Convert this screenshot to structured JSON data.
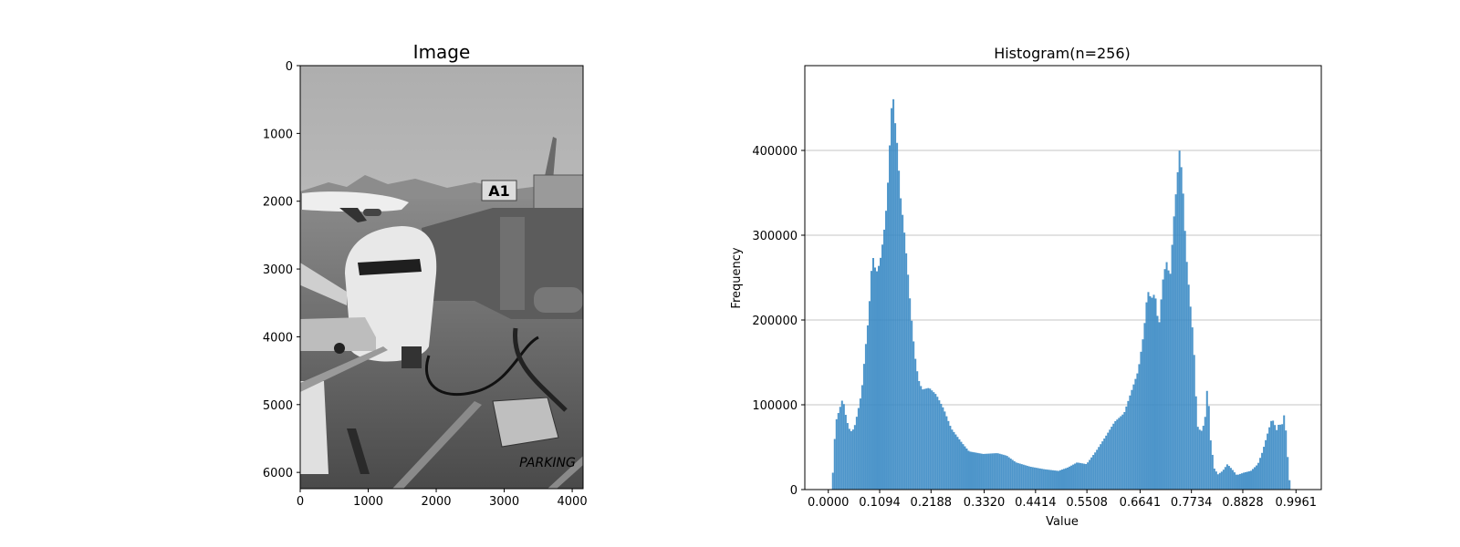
{
  "chart_data": [
    {
      "type": "image",
      "title": "Image",
      "description_colors": {
        "sky": "#b8b8b8",
        "tarmac": "#5a5a5a"
      },
      "xticks": [
        "0",
        "1000",
        "2000",
        "3000",
        "4000"
      ],
      "yticks": [
        "0",
        "1000",
        "2000",
        "3000",
        "4000",
        "5000",
        "6000"
      ],
      "xlim": [
        0,
        4160
      ],
      "ylim": [
        6240,
        0
      ],
      "image_text": {
        "gate_sign": "A1",
        "ground_marking": "PARKING"
      }
    },
    {
      "type": "bar",
      "title": "Histogram(n=256)",
      "xlabel": "Value",
      "ylabel": "Frequency",
      "bins": 256,
      "xlim": [
        -0.05,
        1.05
      ],
      "ylim": [
        0,
        500000
      ],
      "grid": "y",
      "bar_color": "#3a8ac4",
      "xticks": [
        "0.0000",
        "0.1094",
        "0.2188",
        "0.3320",
        "0.4414",
        "0.5508",
        "0.6641",
        "0.7734",
        "0.8828",
        "0.9961"
      ],
      "yticks": [
        "0",
        "100000",
        "200000",
        "300000",
        "400000"
      ],
      "keypoints": [
        [
          0.0,
          0
        ],
        [
          0.008,
          0
        ],
        [
          0.012,
          45000
        ],
        [
          0.016,
          80000
        ],
        [
          0.024,
          95000
        ],
        [
          0.031,
          108000
        ],
        [
          0.039,
          82000
        ],
        [
          0.047,
          68000
        ],
        [
          0.055,
          72000
        ],
        [
          0.063,
          92000
        ],
        [
          0.071,
          115000
        ],
        [
          0.078,
          160000
        ],
        [
          0.086,
          205000
        ],
        [
          0.094,
          278000
        ],
        [
          0.102,
          255000
        ],
        [
          0.11,
          268000
        ],
        [
          0.118,
          300000
        ],
        [
          0.125,
          340000
        ],
        [
          0.133,
          430000
        ],
        [
          0.137,
          475000
        ],
        [
          0.141,
          440000
        ],
        [
          0.145,
          420000
        ],
        [
          0.149,
          390000
        ],
        [
          0.153,
          350000
        ],
        [
          0.161,
          310000
        ],
        [
          0.169,
          260000
        ],
        [
          0.176,
          210000
        ],
        [
          0.184,
          160000
        ],
        [
          0.192,
          130000
        ],
        [
          0.2,
          118000
        ],
        [
          0.215,
          120000
        ],
        [
          0.23,
          112000
        ],
        [
          0.246,
          95000
        ],
        [
          0.262,
          72000
        ],
        [
          0.285,
          55000
        ],
        [
          0.3,
          45000
        ],
        [
          0.33,
          42000
        ],
        [
          0.36,
          43000
        ],
        [
          0.38,
          40000
        ],
        [
          0.4,
          32000
        ],
        [
          0.43,
          27000
        ],
        [
          0.46,
          24000
        ],
        [
          0.49,
          22000
        ],
        [
          0.51,
          26000
        ],
        [
          0.53,
          32000
        ],
        [
          0.55,
          30000
        ],
        [
          0.57,
          45000
        ],
        [
          0.59,
          62000
        ],
        [
          0.61,
          80000
        ],
        [
          0.63,
          90000
        ],
        [
          0.645,
          115000
        ],
        [
          0.66,
          140000
        ],
        [
          0.672,
          185000
        ],
        [
          0.68,
          235000
        ],
        [
          0.688,
          225000
        ],
        [
          0.696,
          232000
        ],
        [
          0.704,
          190000
        ],
        [
          0.712,
          245000
        ],
        [
          0.72,
          270000
        ],
        [
          0.728,
          250000
        ],
        [
          0.736,
          320000
        ],
        [
          0.742,
          360000
        ],
        [
          0.748,
          400000
        ],
        [
          0.754,
          370000
        ],
        [
          0.762,
          280000
        ],
        [
          0.77,
          225000
        ],
        [
          0.778,
          175000
        ],
        [
          0.786,
          75000
        ],
        [
          0.794,
          68000
        ],
        [
          0.802,
          80000
        ],
        [
          0.808,
          127000
        ],
        [
          0.814,
          60000
        ],
        [
          0.822,
          25000
        ],
        [
          0.83,
          18000
        ],
        [
          0.84,
          22000
        ],
        [
          0.85,
          30000
        ],
        [
          0.86,
          24000
        ],
        [
          0.87,
          17000
        ],
        [
          0.885,
          20000
        ],
        [
          0.9,
          22000
        ],
        [
          0.915,
          30000
        ],
        [
          0.925,
          45000
        ],
        [
          0.935,
          65000
        ],
        [
          0.945,
          84000
        ],
        [
          0.95,
          78000
        ],
        [
          0.955,
          70000
        ],
        [
          0.96,
          78000
        ],
        [
          0.966,
          75000
        ],
        [
          0.972,
          91000
        ],
        [
          0.978,
          42000
        ],
        [
          0.984,
          0
        ],
        [
          1.0,
          0
        ]
      ]
    }
  ]
}
